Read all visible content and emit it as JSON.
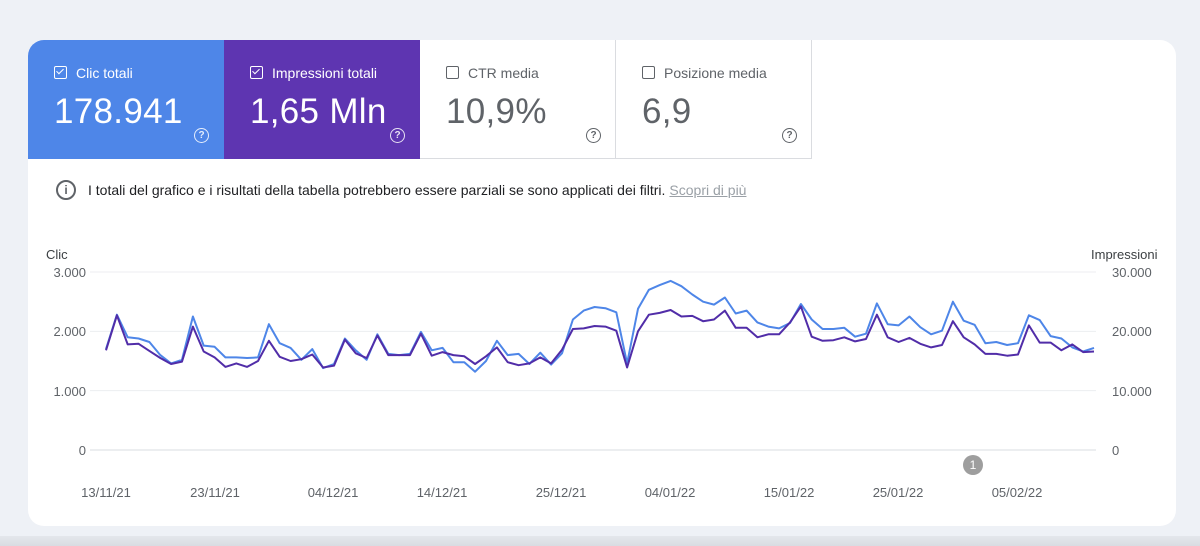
{
  "metrics": [
    {
      "label": "Clic totali",
      "value": "178.941",
      "checked": true,
      "color": "#4e86e8"
    },
    {
      "label": "Impressioni totali",
      "value": "1,65 Mln",
      "checked": true,
      "color": "#5e35b1"
    },
    {
      "label": "CTR media",
      "value": "10,9%",
      "checked": false
    },
    {
      "label": "Posizione media",
      "value": "6,9",
      "checked": false
    }
  ],
  "help_glyph": "?",
  "info": {
    "text": "I totali del grafico e i risultati della tabella potrebbero essere parziali se sono applicati dei filtri.",
    "link": "Scopri di più"
  },
  "chart_data": {
    "type": "line",
    "left_axis_title": "Clic",
    "right_axis_title": "Impressioni",
    "left_ticks": [
      "3.000",
      "2.000",
      "1.000",
      "0"
    ],
    "right_ticks": [
      "30.000",
      "20.000",
      "10.000",
      "0"
    ],
    "left_ylim": [
      0,
      3000
    ],
    "right_ylim": [
      0,
      30000
    ],
    "x_tick_labels": [
      "13/11/21",
      "23/11/21",
      "04/12/21",
      "14/12/21",
      "25/12/21",
      "04/01/22",
      "15/01/22",
      "25/01/22",
      "05/02/22"
    ],
    "grid": true,
    "annotation": "1",
    "series": [
      {
        "name": "Impressioni",
        "axis": "right",
        "color": "#4e86e8",
        "values": [
          17000,
          22800,
          19000,
          18800,
          18200,
          16000,
          14600,
          15200,
          22500,
          17600,
          17400,
          15600,
          15600,
          15500,
          15600,
          21200,
          18000,
          17200,
          15200,
          17000,
          13800,
          14500,
          18800,
          16800,
          15200,
          19500,
          16200,
          16000,
          16200,
          19900,
          16800,
          17200,
          14800,
          14800,
          13200,
          15000,
          18400,
          16000,
          16200,
          14500,
          16400,
          14400,
          16300,
          22000,
          23500,
          24100,
          23900,
          23200,
          14600,
          23800,
          27000,
          27800,
          28500,
          27600,
          26200,
          25000,
          24500,
          25700,
          23000,
          23500,
          21500,
          20800,
          20500,
          21400,
          24600,
          22000,
          20400,
          20400,
          20600,
          19100,
          19600,
          24700,
          21200,
          21000,
          22500,
          20700,
          19500,
          20100,
          25000,
          21800,
          21100,
          18000,
          18200,
          17700,
          18000,
          22700,
          21900,
          19200,
          18800,
          17300,
          16600,
          17200
        ]
      },
      {
        "name": "Clic",
        "axis": "left",
        "color": "#512da8",
        "values": [
          1680,
          2270,
          1780,
          1790,
          1670,
          1550,
          1450,
          1490,
          2080,
          1660,
          1560,
          1400,
          1460,
          1400,
          1500,
          1840,
          1570,
          1500,
          1530,
          1610,
          1390,
          1420,
          1860,
          1630,
          1550,
          1930,
          1600,
          1600,
          1600,
          1960,
          1590,
          1650,
          1600,
          1580,
          1450,
          1580,
          1730,
          1480,
          1430,
          1460,
          1560,
          1460,
          1690,
          2040,
          2050,
          2090,
          2080,
          2010,
          1390,
          2000,
          2280,
          2310,
          2360,
          2250,
          2260,
          2170,
          2200,
          2350,
          2060,
          2060,
          1900,
          1950,
          1950,
          2150,
          2420,
          1910,
          1840,
          1850,
          1900,
          1830,
          1870,
          2280,
          1900,
          1820,
          1890,
          1790,
          1730,
          1770,
          2170,
          1900,
          1780,
          1620,
          1620,
          1590,
          1610,
          2100,
          1810,
          1810,
          1680,
          1780,
          1650,
          1660
        ]
      }
    ]
  }
}
